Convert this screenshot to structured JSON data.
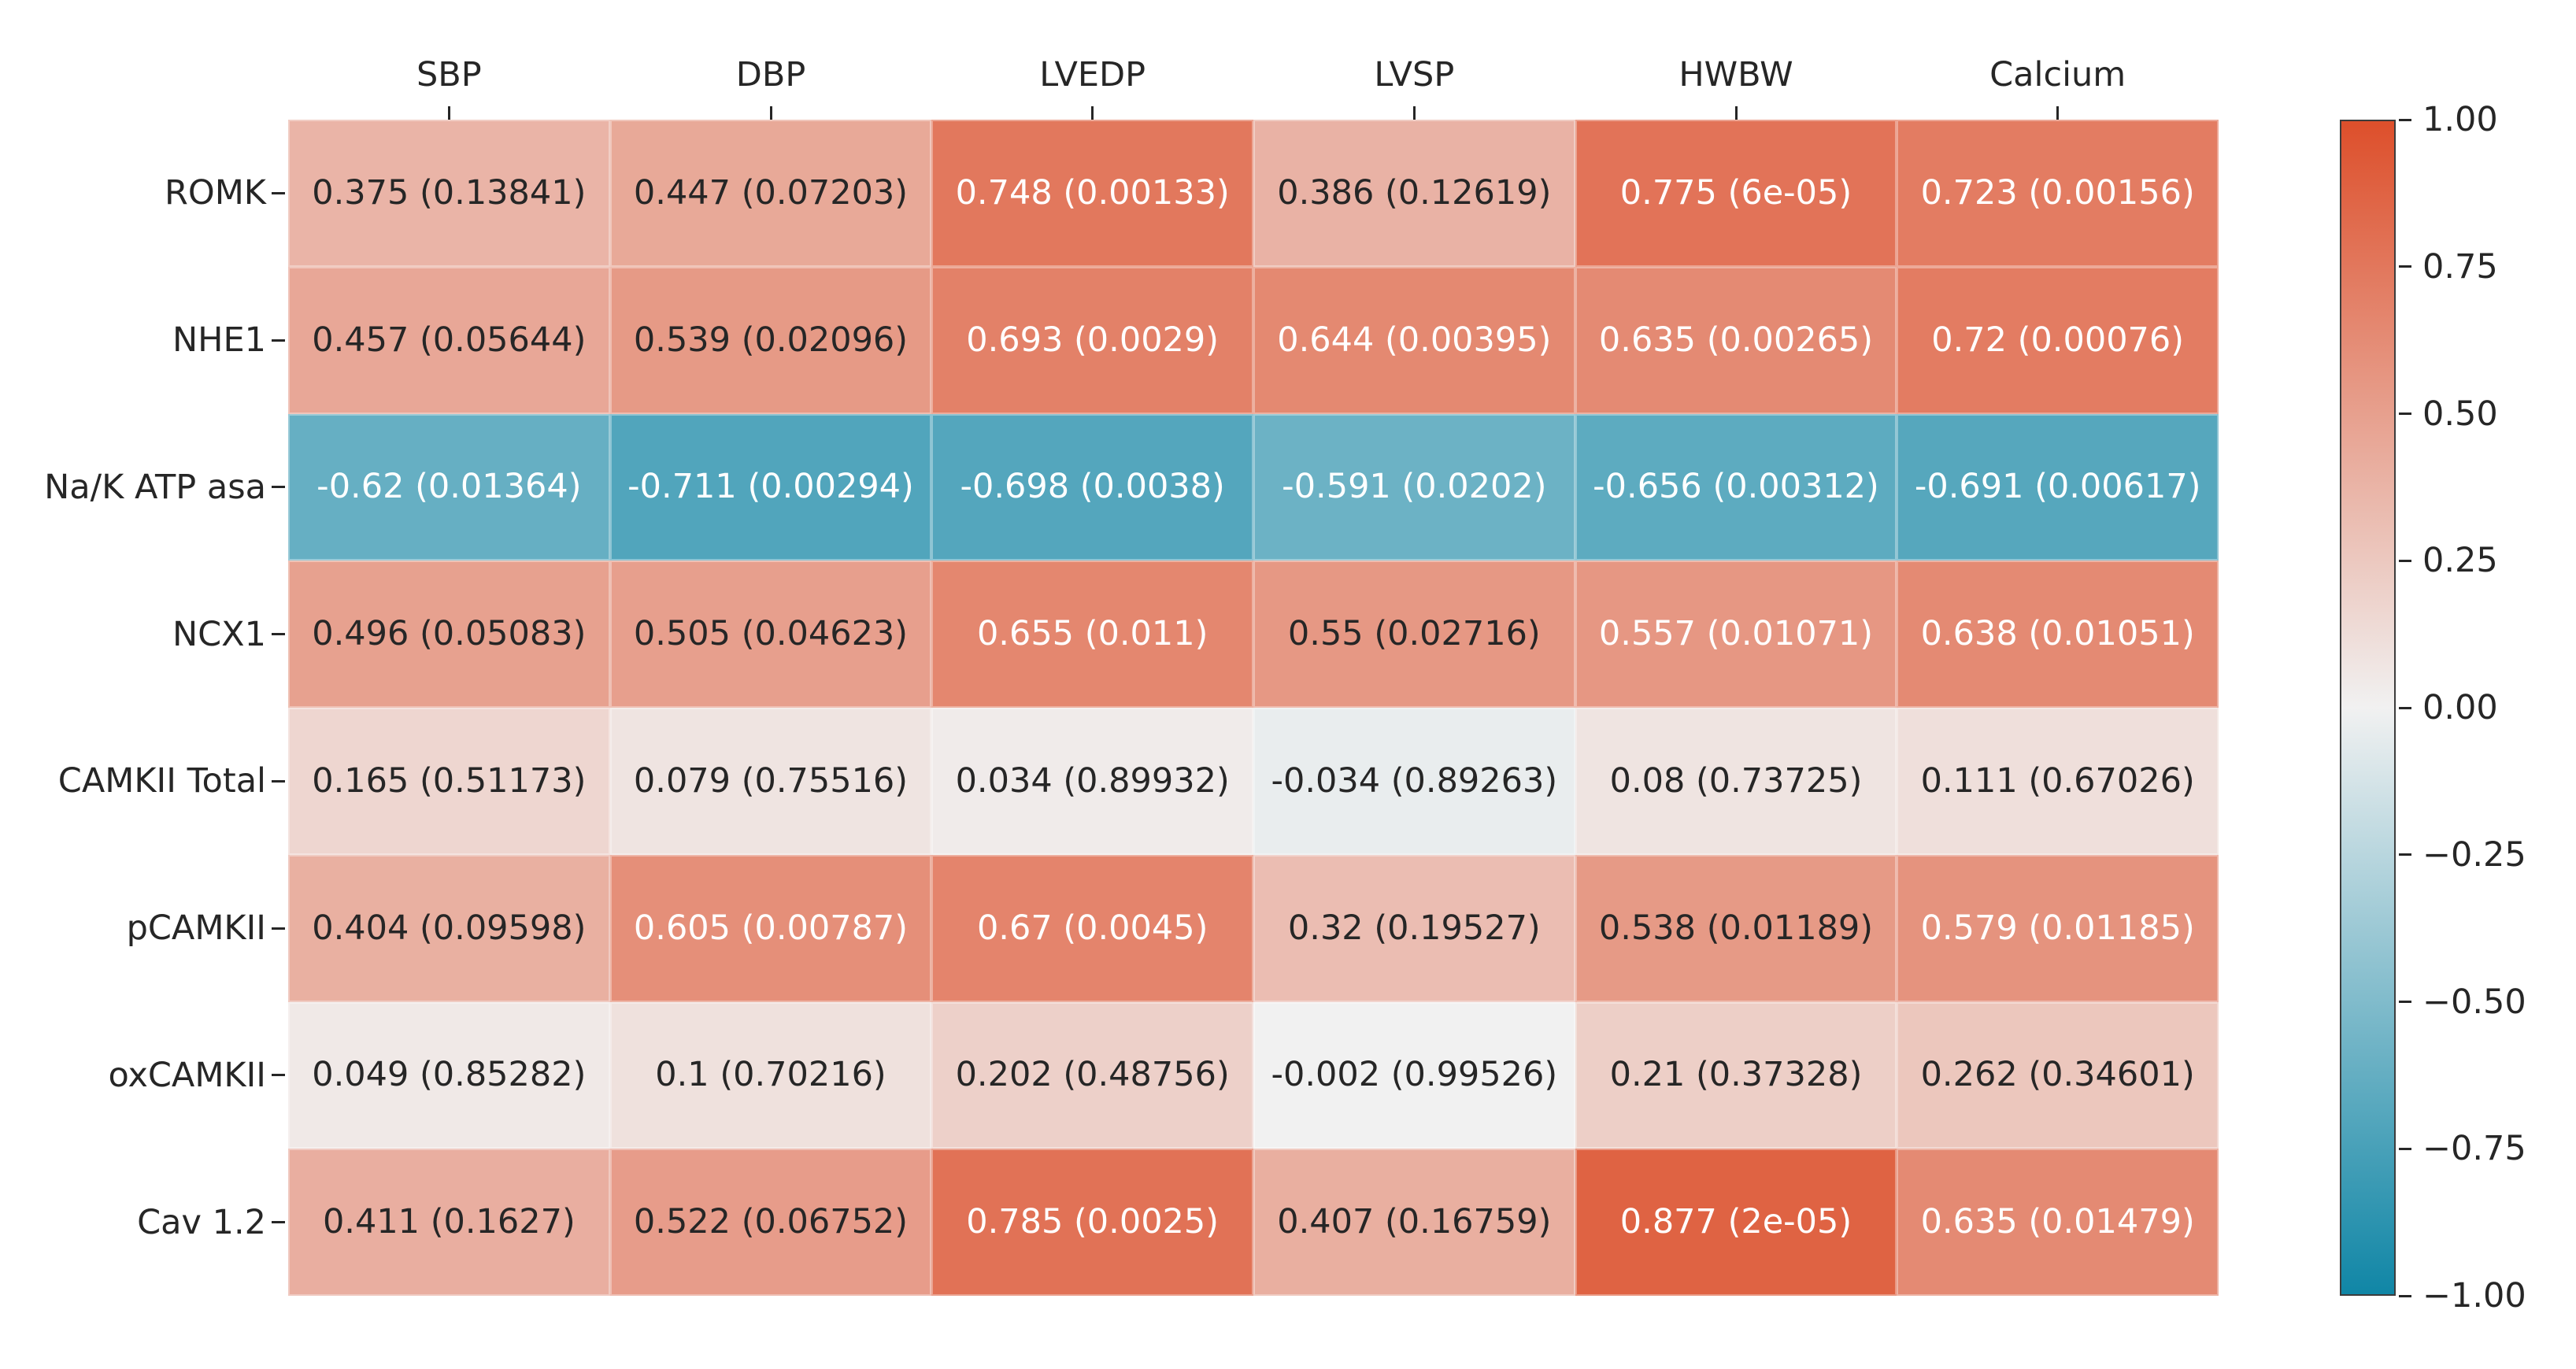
{
  "chart_data": {
    "type": "heatmap",
    "title": "",
    "columns": [
      "SBP",
      "DBP",
      "LVEDP",
      "LVSP",
      "HWBW",
      "Calcium"
    ],
    "rows": [
      "ROMK",
      "NHE1",
      "Na/K ATP asa",
      "NCX1",
      "CAMKII Total",
      "pCAMKII",
      "oxCAMKII",
      "Cav 1.2"
    ],
    "r_values": [
      [
        0.375,
        0.447,
        0.748,
        0.386,
        0.775,
        0.723
      ],
      [
        0.457,
        0.539,
        0.693,
        0.644,
        0.635,
        0.72
      ],
      [
        -0.62,
        -0.711,
        -0.698,
        -0.591,
        -0.656,
        -0.691
      ],
      [
        0.496,
        0.505,
        0.655,
        0.55,
        0.557,
        0.638
      ],
      [
        0.165,
        0.079,
        0.034,
        -0.034,
        0.08,
        0.111
      ],
      [
        0.404,
        0.605,
        0.67,
        0.32,
        0.538,
        0.579
      ],
      [
        0.049,
        0.1,
        0.202,
        -0.002,
        0.21,
        0.262
      ],
      [
        0.411,
        0.522,
        0.785,
        0.407,
        0.877,
        0.635
      ]
    ],
    "p_values": [
      [
        0.13841,
        0.07203,
        0.00133,
        0.12619,
        6e-05,
        0.00156
      ],
      [
        0.05644,
        0.02096,
        0.0029,
        0.00395,
        0.00265,
        0.00076
      ],
      [
        0.01364,
        0.00294,
        0.0038,
        0.0202,
        0.00312,
        0.00617
      ],
      [
        0.05083,
        0.04623,
        0.011,
        0.02716,
        0.01071,
        0.01051
      ],
      [
        0.51173,
        0.75516,
        0.89932,
        0.89263,
        0.73725,
        0.67026
      ],
      [
        0.09598,
        0.00787,
        0.0045,
        0.19527,
        0.01189,
        0.01185
      ],
      [
        0.85282,
        0.70216,
        0.48756,
        0.99526,
        0.37328,
        0.34601
      ],
      [
        0.1627,
        0.06752,
        0.0025,
        0.16759,
        2e-05,
        0.01479
      ]
    ],
    "cell_labels": [
      [
        "0.375 (0.13841)",
        "0.447 (0.07203)",
        "0.748 (0.00133)",
        "0.386 (0.12619)",
        "0.775 (6e-05)",
        "0.723 (0.00156)"
      ],
      [
        "0.457 (0.05644)",
        "0.539 (0.02096)",
        "0.693 (0.0029)",
        "0.644 (0.00395)",
        "0.635 (0.00265)",
        "0.72 (0.00076)"
      ],
      [
        "-0.62 (0.01364)",
        "-0.711 (0.00294)",
        "-0.698 (0.0038)",
        "-0.591 (0.0202)",
        "-0.656 (0.00312)",
        "-0.691 (0.00617)"
      ],
      [
        "0.496 (0.05083)",
        "0.505 (0.04623)",
        "0.655 (0.011)",
        "0.55 (0.02716)",
        "0.557 (0.01071)",
        "0.638 (0.01051)"
      ],
      [
        "0.165 (0.51173)",
        "0.079 (0.75516)",
        "0.034 (0.89932)",
        "-0.034 (0.89263)",
        "0.08 (0.73725)",
        "0.111 (0.67026)"
      ],
      [
        "0.404 (0.09598)",
        "0.605 (0.00787)",
        "0.67 (0.0045)",
        "0.32 (0.19527)",
        "0.538 (0.01189)",
        "0.579 (0.01185)"
      ],
      [
        "0.049 (0.85282)",
        "0.1 (0.70216)",
        "0.202 (0.48756)",
        "-0.002 (0.99526)",
        "0.21 (0.37328)",
        "0.262 (0.34601)"
      ],
      [
        "0.411 (0.1627)",
        "0.522 (0.06752)",
        "0.785 (0.0025)",
        "0.407 (0.16759)",
        "0.877 (2e-05)",
        "0.635 (0.01479)"
      ]
    ],
    "colormap": {
      "negative_end": "#1086a6",
      "center": "#f1f1f1",
      "positive_end": "#dd4f2b"
    },
    "annotation_text": {
      "dark": "#262626",
      "light": "#ffffff",
      "luminance_threshold": 0.4085
    },
    "colorbar": {
      "vmin": -1,
      "vmax": 1,
      "tick_labels": [
        "1.00",
        "0.75",
        "0.50",
        "0.25",
        "0.00",
        "−0.25",
        "−0.50",
        "−0.75",
        "−1.00"
      ]
    },
    "axis": {
      "grid": false,
      "legend_position": "right-colorbar"
    }
  }
}
